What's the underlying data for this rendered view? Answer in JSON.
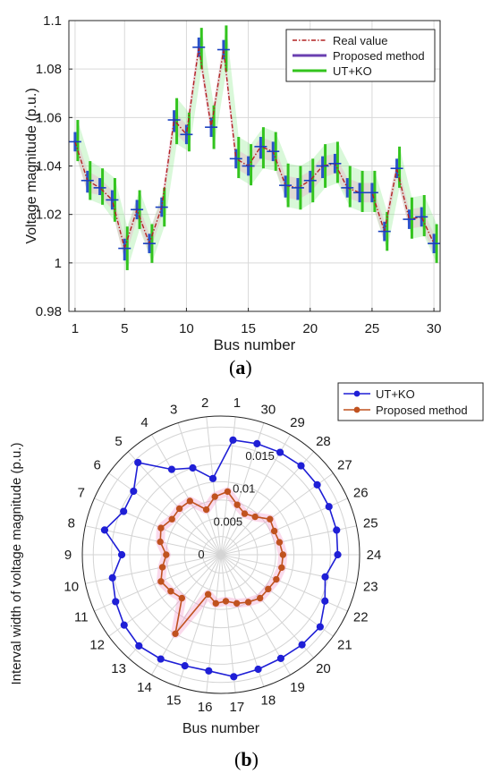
{
  "chart_data": [
    {
      "type": "line",
      "panel_label": "a",
      "xlabel": "Bus number",
      "ylabel": "Voltage magnitude (p.u.)",
      "xlim": [
        0.5,
        30.5
      ],
      "ylim": [
        0.98,
        1.1
      ],
      "xticks": [
        "1",
        "5",
        "10",
        "15",
        "20",
        "25",
        "30"
      ],
      "yticks": [
        "0.98",
        "1",
        "1.02",
        "1.04",
        "1.06",
        "1.08",
        "1.1"
      ],
      "grid": true,
      "legend_position": "top-right",
      "x": [
        1,
        2,
        3,
        4,
        5,
        6,
        7,
        8,
        9,
        10,
        11,
        12,
        13,
        14,
        15,
        16,
        17,
        18,
        19,
        20,
        21,
        22,
        23,
        24,
        25,
        26,
        27,
        28,
        29,
        30
      ],
      "series": [
        {
          "name": "Real value",
          "style": "dash-dot",
          "color": "#b22222",
          "values": [
            1.05,
            1.034,
            1.031,
            1.026,
            1.006,
            1.022,
            1.008,
            1.023,
            1.059,
            1.053,
            1.089,
            1.056,
            1.088,
            1.043,
            1.04,
            1.048,
            1.046,
            1.032,
            1.031,
            1.034,
            1.04,
            1.041,
            1.031,
            1.029,
            1.029,
            1.013,
            1.039,
            1.018,
            1.019,
            1.008
          ]
        },
        {
          "name": "Proposed method",
          "type": "interval",
          "color": "#6a3fb0",
          "lower": [
            1.046,
            1.029,
            1.028,
            1.022,
            1.001,
            1.018,
            1.004,
            1.019,
            1.054,
            1.049,
            1.085,
            1.052,
            1.084,
            1.039,
            1.036,
            1.043,
            1.042,
            1.027,
            1.026,
            1.029,
            1.035,
            1.037,
            1.027,
            1.025,
            1.025,
            1.009,
            1.035,
            1.014,
            1.015,
            1.004
          ],
          "upper": [
            1.054,
            1.038,
            1.035,
            1.03,
            1.01,
            1.026,
            1.012,
            1.027,
            1.063,
            1.057,
            1.093,
            1.06,
            1.092,
            1.047,
            1.044,
            1.052,
            1.05,
            1.036,
            1.035,
            1.038,
            1.044,
            1.045,
            1.035,
            1.033,
            1.033,
            1.017,
            1.043,
            1.022,
            1.023,
            1.012
          ]
        },
        {
          "name": "UT+KO",
          "type": "interval",
          "color": "#33c41e",
          "lower": [
            1.042,
            1.026,
            1.024,
            1.017,
            0.997,
            1.014,
            1.0,
            1.015,
            1.049,
            1.046,
            1.08,
            1.047,
            1.079,
            1.035,
            1.032,
            1.039,
            1.038,
            1.023,
            1.022,
            1.025,
            1.031,
            1.033,
            1.023,
            1.021,
            1.021,
            1.005,
            1.031,
            1.01,
            1.011,
            1.0
          ],
          "upper": [
            1.059,
            1.042,
            1.039,
            1.035,
            1.015,
            1.03,
            1.016,
            1.031,
            1.068,
            1.062,
            1.097,
            1.065,
            1.098,
            1.052,
            1.049,
            1.056,
            1.054,
            1.041,
            1.04,
            1.043,
            1.049,
            1.05,
            1.04,
            1.038,
            1.038,
            1.021,
            1.048,
            1.027,
            1.028,
            1.016
          ]
        }
      ],
      "legend": [
        "Real value",
        "Proposed method",
        "UT+KO"
      ]
    },
    {
      "type": "radar",
      "panel_label": "b",
      "xlabel": "Bus number",
      "ylabel": "Interval width of voltage magnitude (p.u.)",
      "rlim": [
        0,
        0.019
      ],
      "rticks": [
        "0",
        "0.005",
        "0.01",
        "0.015"
      ],
      "grid": true,
      "legend_position": "top-right",
      "categories": [
        "1",
        "2",
        "3",
        "4",
        "5",
        "6",
        "7",
        "8",
        "9",
        "10",
        "11",
        "12",
        "13",
        "14",
        "15",
        "16",
        "17",
        "18",
        "19",
        "20",
        "21",
        "22",
        "23",
        "24",
        "25",
        "26",
        "27",
        "28",
        "29",
        "30"
      ],
      "series": [
        {
          "name": "UT+KO",
          "color": "#1f1fd6",
          "values": [
            0.0158,
            0.0105,
            0.0125,
            0.0135,
            0.017,
            0.0148,
            0.0146,
            0.0163,
            0.0136,
            0.0152,
            0.0158,
            0.0164,
            0.0168,
            0.0165,
            0.016,
            0.016,
            0.0168,
            0.0165,
            0.0164,
            0.0166,
            0.0168,
            0.0156,
            0.0146,
            0.016,
            0.0162,
            0.0162,
            0.0163,
            0.0164,
            0.0162,
            0.016
          ]
        },
        {
          "name": "Proposed method",
          "color": "#c0521f",
          "values": [
            0.0087,
            0.008,
            0.0065,
            0.0085,
            0.0085,
            0.0083,
            0.009,
            0.0085,
            0.0075,
            0.0082,
            0.009,
            0.0085,
            0.008,
            0.0125,
            0.0057,
            0.0067,
            0.0064,
            0.007,
            0.0075,
            0.008,
            0.008,
            0.0083,
            0.0085,
            0.0085,
            0.0082,
            0.008,
            0.0083,
            0.007,
            0.0065,
            0.0072
          ]
        }
      ],
      "legend": [
        "UT+KO",
        "Proposed method"
      ]
    }
  ],
  "captions": [
    "(a)",
    "(b)"
  ],
  "captions_bold_letters": [
    "a",
    "b"
  ]
}
